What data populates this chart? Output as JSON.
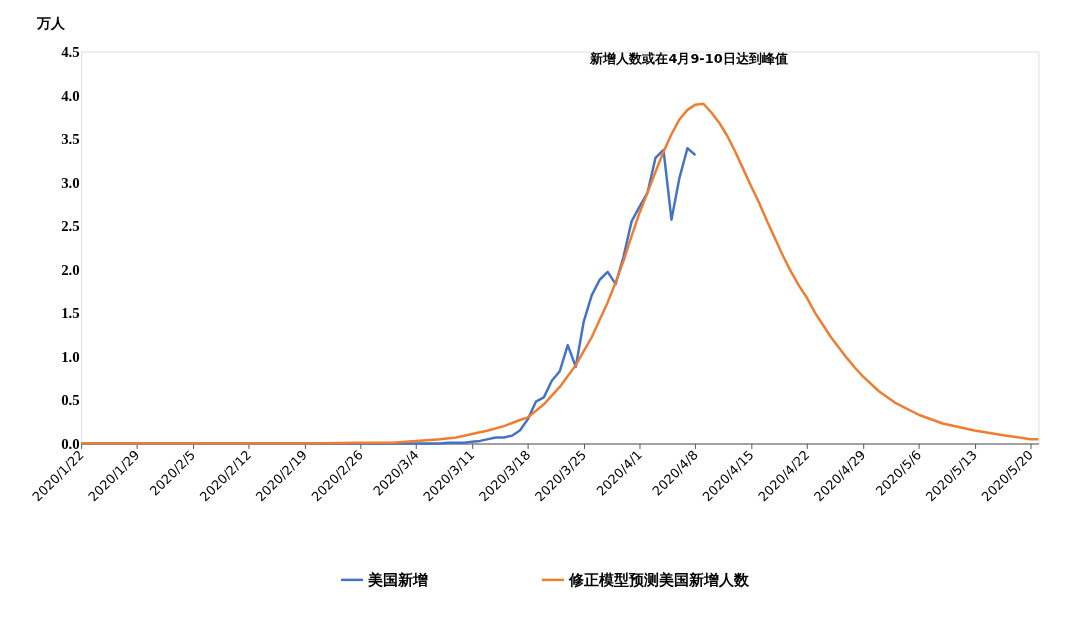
{
  "chart_data": {
    "type": "line",
    "ylabel": "万人",
    "annotations": [
      "新增人数或在4月9-10日达到峰值"
    ],
    "xlim": [
      "2020-01-22",
      "2020-05-21"
    ],
    "xticks": [
      {
        "value": "2020-01-22",
        "label": "2020/1/22"
      },
      {
        "value": "2020-01-29",
        "label": "2020/1/29"
      },
      {
        "value": "2020-02-05",
        "label": "2020/2/5"
      },
      {
        "value": "2020-02-12",
        "label": "2020/2/12"
      },
      {
        "value": "2020-02-19",
        "label": "2020/2/19"
      },
      {
        "value": "2020-02-26",
        "label": "2020/2/26"
      },
      {
        "value": "2020-03-04",
        "label": "2020/3/4"
      },
      {
        "value": "2020-03-11",
        "label": "2020/3/11"
      },
      {
        "value": "2020-03-18",
        "label": "2020/3/18"
      },
      {
        "value": "2020-03-25",
        "label": "2020/3/25"
      },
      {
        "value": "2020-04-01",
        "label": "2020/4/1"
      },
      {
        "value": "2020-04-08",
        "label": "2020/4/8"
      },
      {
        "value": "2020-04-15",
        "label": "2020/4/15"
      },
      {
        "value": "2020-04-22",
        "label": "2020/4/22"
      },
      {
        "value": "2020-04-29",
        "label": "2020/4/29"
      },
      {
        "value": "2020-05-06",
        "label": "2020/5/6"
      },
      {
        "value": "2020-05-13",
        "label": "2020/5/13"
      },
      {
        "value": "2020-05-20",
        "label": "2020/5/20"
      }
    ],
    "ylim": [
      0,
      4.5
    ],
    "yticks": [
      {
        "value": 0,
        "label": "0.0"
      },
      {
        "value": 0.5,
        "label": "0.5"
      },
      {
        "value": 1,
        "label": "1.0"
      },
      {
        "value": 1.5,
        "label": "1.5"
      },
      {
        "value": 2,
        "label": "2.0"
      },
      {
        "value": 2.5,
        "label": "2.5"
      },
      {
        "value": 3,
        "label": "3.0"
      },
      {
        "value": 3.5,
        "label": "3.5"
      },
      {
        "value": 4,
        "label": "4.0"
      },
      {
        "value": 4.5,
        "label": "4.5"
      }
    ],
    "grid": false,
    "legend": "bottom",
    "marker": "none",
    "line_style": "solid",
    "series": [
      {
        "name": "美国新增",
        "color": "#4472c4",
        "x": [
          "2020-01-22",
          "2020-03-07",
          "2020-03-08",
          "2020-03-09",
          "2020-03-10",
          "2020-03-11",
          "2020-03-12",
          "2020-03-13",
          "2020-03-14",
          "2020-03-15",
          "2020-03-16",
          "2020-03-17",
          "2020-03-18",
          "2020-03-19",
          "2020-03-20",
          "2020-03-21",
          "2020-03-22",
          "2020-03-23",
          "2020-03-24",
          "2020-03-25",
          "2020-03-26",
          "2020-03-27",
          "2020-03-28",
          "2020-03-29",
          "2020-03-30",
          "2020-03-31",
          "2020-04-01",
          "2020-04-02",
          "2020-04-03",
          "2020-04-04",
          "2020-04-05",
          "2020-04-06",
          "2020-04-07",
          "2020-04-08"
        ],
        "values": [
          0,
          0,
          0.01,
          0.01,
          0.01,
          0.02,
          0.03,
          0.05,
          0.07,
          0.07,
          0.09,
          0.15,
          0.28,
          0.48,
          0.53,
          0.72,
          0.83,
          1.13,
          0.88,
          1.4,
          1.7,
          1.88,
          1.97,
          1.83,
          2.15,
          2.55,
          2.72,
          2.88,
          3.28,
          3.37,
          2.57,
          3.05,
          3.39,
          3.31
        ]
      },
      {
        "name": "修正模型预测美国新增人数",
        "color": "#ed7d31",
        "x": [
          "2020-01-22",
          "2020-02-19",
          "2020-02-26",
          "2020-03-01",
          "2020-03-04",
          "2020-03-07",
          "2020-03-09",
          "2020-03-11",
          "2020-03-13",
          "2020-03-15",
          "2020-03-17",
          "2020-03-18",
          "2020-03-20",
          "2020-03-22",
          "2020-03-24",
          "2020-03-25",
          "2020-03-26",
          "2020-03-27",
          "2020-03-28",
          "2020-03-29",
          "2020-03-30",
          "2020-03-31",
          "2020-04-01",
          "2020-04-02",
          "2020-04-03",
          "2020-04-04",
          "2020-04-05",
          "2020-04-06",
          "2020-04-07",
          "2020-04-08",
          "2020-04-09",
          "2020-04-10",
          "2020-04-11",
          "2020-04-12",
          "2020-04-13",
          "2020-04-14",
          "2020-04-15",
          "2020-04-16",
          "2020-04-17",
          "2020-04-18",
          "2020-04-19",
          "2020-04-20",
          "2020-04-21",
          "2020-04-22",
          "2020-04-23",
          "2020-04-24",
          "2020-04-25",
          "2020-04-26",
          "2020-04-27",
          "2020-04-28",
          "2020-04-29",
          "2020-05-01",
          "2020-05-03",
          "2020-05-06",
          "2020-05-09",
          "2020-05-13",
          "2020-05-17",
          "2020-05-20",
          "2020-05-21"
        ],
        "values": [
          0,
          0,
          0.01,
          0.01,
          0.03,
          0.05,
          0.07,
          0.11,
          0.15,
          0.2,
          0.27,
          0.3,
          0.45,
          0.65,
          0.9,
          1.06,
          1.22,
          1.42,
          1.62,
          1.85,
          2.1,
          2.38,
          2.65,
          2.88,
          3.12,
          3.35,
          3.55,
          3.72,
          3.83,
          3.89,
          3.9,
          3.8,
          3.68,
          3.53,
          3.35,
          3.15,
          2.95,
          2.76,
          2.55,
          2.35,
          2.15,
          1.97,
          1.81,
          1.67,
          1.5,
          1.36,
          1.22,
          1.1,
          0.98,
          0.87,
          0.77,
          0.6,
          0.47,
          0.33,
          0.23,
          0.15,
          0.09,
          0.05,
          0.05
        ]
      }
    ]
  }
}
